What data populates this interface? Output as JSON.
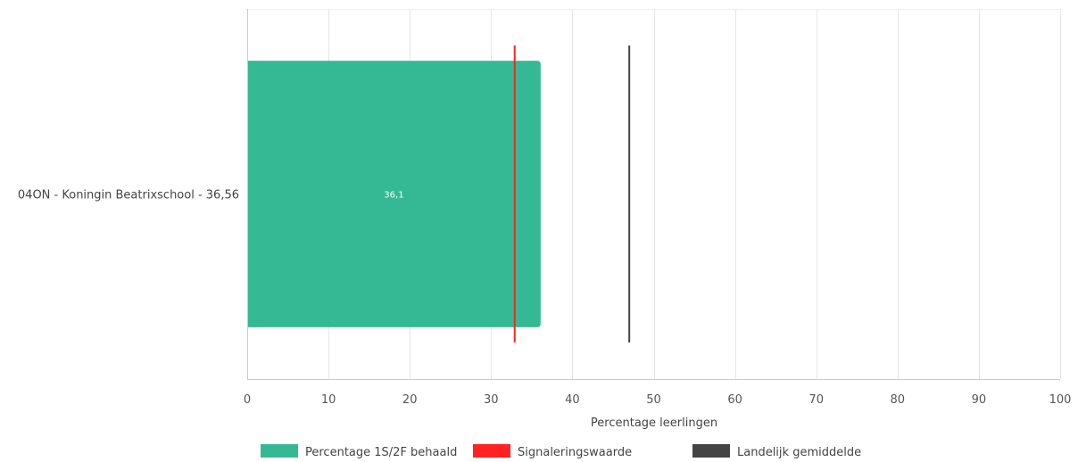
{
  "chart_data": {
    "type": "bar",
    "orientation": "horizontal",
    "categories": [
      "04ON - Koningin Beatrixschool - 36,56"
    ],
    "series": [
      {
        "name": "Percentage 1S/2F behaald",
        "values": [
          36.1
        ],
        "data_labels": [
          "36,1"
        ],
        "color": "#35b994"
      }
    ],
    "reference_lines": [
      {
        "name": "Signaleringswaarde",
        "value": 32.9,
        "color": "#ff2222"
      },
      {
        "name": "Landelijk gemiddelde",
        "value": 47,
        "color": "#444444"
      }
    ],
    "xlabel": "Percentage leerlingen",
    "ylabel": "",
    "xlim": [
      0,
      100
    ],
    "xticks": [
      0,
      10,
      20,
      30,
      40,
      50,
      60,
      70,
      80,
      90,
      100
    ],
    "xtick_labels": [
      "0",
      "10",
      "20",
      "30",
      "40",
      "50",
      "60",
      "70",
      "80",
      "90",
      "100"
    ],
    "grid": true,
    "legend_position": "bottom-center"
  }
}
